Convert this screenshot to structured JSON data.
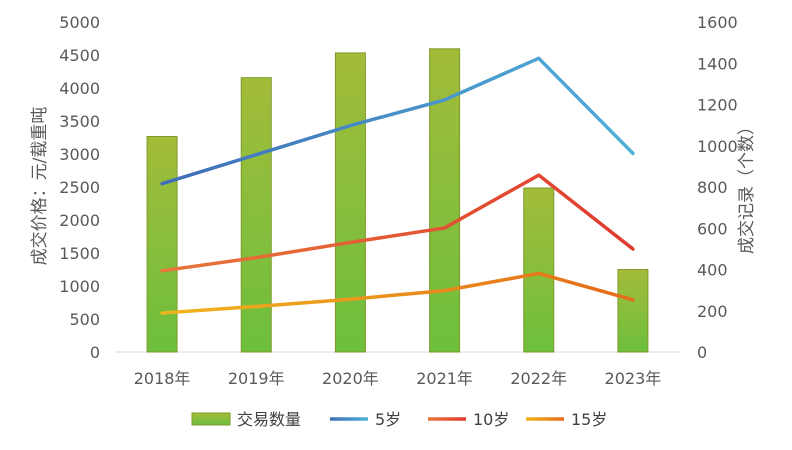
{
  "chart_data": {
    "type": "bar",
    "categories": [
      "2018年",
      "2019年",
      "2020年",
      "2021年",
      "2022年",
      "2023年"
    ],
    "bar_series": {
      "name": "交易数量",
      "axis": "right",
      "values": [
        1045,
        1330,
        1450,
        1470,
        795,
        400
      ],
      "colors": {
        "top": "#a3bc3a",
        "bottom": "#6cbf3d",
        "border": "#7f9a2a"
      }
    },
    "series": [
      {
        "name": "5岁",
        "type": "line",
        "axis": "left",
        "values": [
          2550,
          2990,
          3430,
          3820,
          4450,
          3010
        ],
        "colors": [
          "#3f6fb8",
          "#50b0d8"
        ]
      },
      {
        "name": "10岁",
        "type": "line",
        "axis": "left",
        "values": [
          1230,
          1430,
          1660,
          1880,
          2680,
          1560
        ],
        "colors": [
          "#e8773a",
          "#e03a2e"
        ]
      },
      {
        "name": "15岁",
        "type": "line",
        "axis": "left",
        "values": [
          590,
          690,
          800,
          930,
          1190,
          790
        ],
        "colors": [
          "#f0b41c",
          "#e56a1a"
        ]
      }
    ],
    "ylabel": "成交价格：元/载重吨",
    "y2label": "成交记录（个数）",
    "ylim": [
      0,
      5000
    ],
    "y2lim": [
      0,
      1600
    ],
    "yticks": [
      "0",
      "500",
      "1000",
      "1500",
      "2000",
      "2500",
      "3000",
      "3500",
      "4000",
      "4500",
      "5000"
    ],
    "y2ticks": [
      "0",
      "200",
      "400",
      "600",
      "800",
      "1000",
      "1200",
      "1400",
      "1600"
    ],
    "grid": false,
    "legend_position": "bottom"
  }
}
